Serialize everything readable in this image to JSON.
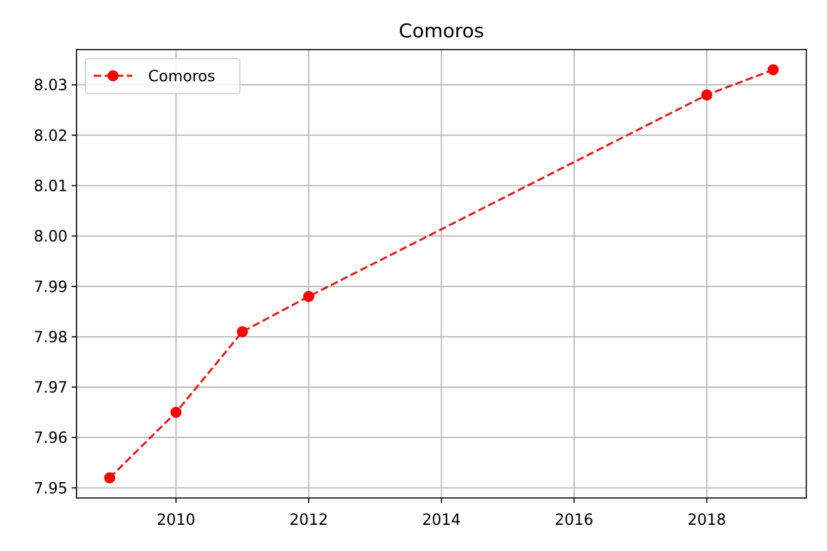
{
  "chart_data": {
    "type": "line",
    "title": "Comoros",
    "xlabel": "",
    "ylabel": "",
    "x": [
      2009,
      2010,
      2011,
      2012,
      2018,
      2019
    ],
    "series": [
      {
        "name": "Comoros",
        "values": [
          7.952,
          7.965,
          7.981,
          7.988,
          8.028,
          8.033
        ],
        "color": "#ff0000",
        "line_color": "#e31a1c",
        "line_style": "dashed",
        "marker": "circle"
      }
    ],
    "xlim": [
      2008.5,
      2019.5
    ],
    "ylim": [
      7.948,
      8.037
    ],
    "x_ticks": [
      2010,
      2012,
      2014,
      2016,
      2018
    ],
    "x_tick_labels": [
      "2010",
      "2012",
      "2014",
      "2016",
      "2018"
    ],
    "y_ticks": [
      7.95,
      7.96,
      7.97,
      7.98,
      7.99,
      8.0,
      8.01,
      8.02,
      8.03
    ],
    "y_tick_labels": [
      "7.95",
      "7.96",
      "7.97",
      "7.98",
      "7.99",
      "8.00",
      "8.01",
      "8.02",
      "8.03"
    ],
    "grid": true,
    "legend_position": "top-left"
  }
}
